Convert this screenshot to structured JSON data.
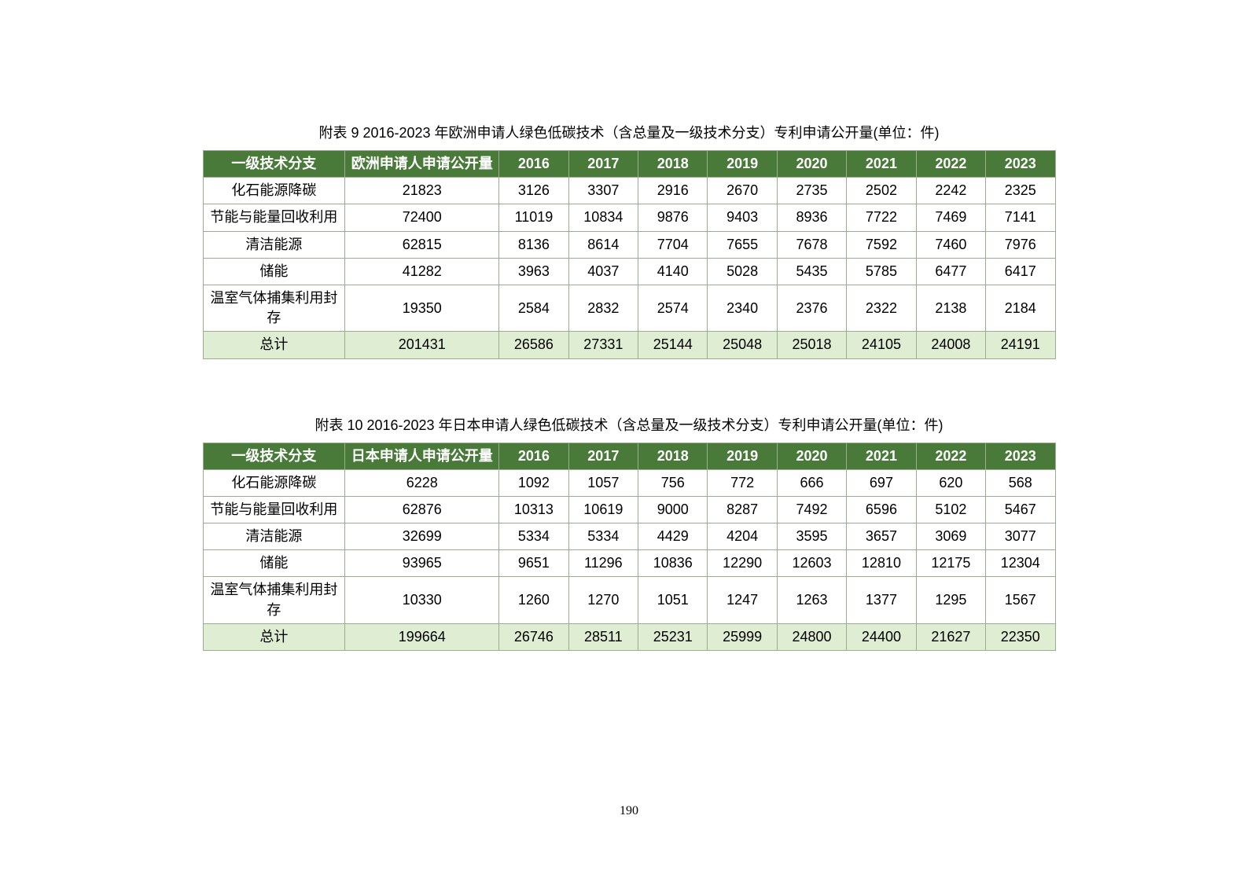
{
  "page_number": "190",
  "tables": [
    {
      "caption": "附表 9 2016-2023 年欧洲申请人绿色低碳技术（含总量及一级技术分支）专利申请公开量(单位：件)",
      "headers": [
        "一级技术分支",
        "欧洲申请人申请公开量",
        "2016",
        "2017",
        "2018",
        "2019",
        "2020",
        "2021",
        "2022",
        "2023"
      ],
      "rows": [
        [
          "化石能源降碳",
          "21823",
          "3126",
          "3307",
          "2916",
          "2670",
          "2735",
          "2502",
          "2242",
          "2325"
        ],
        [
          "节能与能量回收利用",
          "72400",
          "11019",
          "10834",
          "9876",
          "9403",
          "8936",
          "7722",
          "7469",
          "7141"
        ],
        [
          "清洁能源",
          "62815",
          "8136",
          "8614",
          "7704",
          "7655",
          "7678",
          "7592",
          "7460",
          "7976"
        ],
        [
          "储能",
          "41282",
          "3963",
          "4037",
          "4140",
          "5028",
          "5435",
          "5785",
          "6477",
          "6417"
        ],
        [
          "温室气体捕集利用封存",
          "19350",
          "2584",
          "2832",
          "2574",
          "2340",
          "2376",
          "2322",
          "2138",
          "2184"
        ]
      ],
      "total_row": [
        "总计",
        "201431",
        "26586",
        "27331",
        "25144",
        "25048",
        "25018",
        "24105",
        "24008",
        "24191"
      ]
    },
    {
      "caption": "附表 10 2016-2023 年日本申请人绿色低碳技术（含总量及一级技术分支）专利申请公开量(单位：件)",
      "headers": [
        "一级技术分支",
        "日本申请人申请公开量",
        "2016",
        "2017",
        "2018",
        "2019",
        "2020",
        "2021",
        "2022",
        "2023"
      ],
      "rows": [
        [
          "化石能源降碳",
          "6228",
          "1092",
          "1057",
          "756",
          "772",
          "666",
          "697",
          "620",
          "568"
        ],
        [
          "节能与能量回收利用",
          "62876",
          "10313",
          "10619",
          "9000",
          "8287",
          "7492",
          "6596",
          "5102",
          "5467"
        ],
        [
          "清洁能源",
          "32699",
          "5334",
          "5334",
          "4429",
          "4204",
          "3595",
          "3657",
          "3069",
          "3077"
        ],
        [
          "储能",
          "93965",
          "9651",
          "11296",
          "10836",
          "12290",
          "12603",
          "12810",
          "12175",
          "12304"
        ],
        [
          "温室气体捕集利用封存",
          "10330",
          "1260",
          "1270",
          "1051",
          "1247",
          "1263",
          "1377",
          "1295",
          "1567"
        ]
      ],
      "total_row": [
        "总计",
        "199664",
        "26746",
        "28511",
        "25231",
        "25999",
        "24800",
        "24400",
        "21627",
        "22350"
      ]
    }
  ],
  "styling": {
    "header_bg": "#4a7a3a",
    "header_fg": "#ffffff",
    "total_row_bg": "#dfeed2",
    "border_color": "#9aae8d",
    "col_widths": {
      "category": 180,
      "total": 195,
      "year": 88
    },
    "font_size_pt": 14
  }
}
